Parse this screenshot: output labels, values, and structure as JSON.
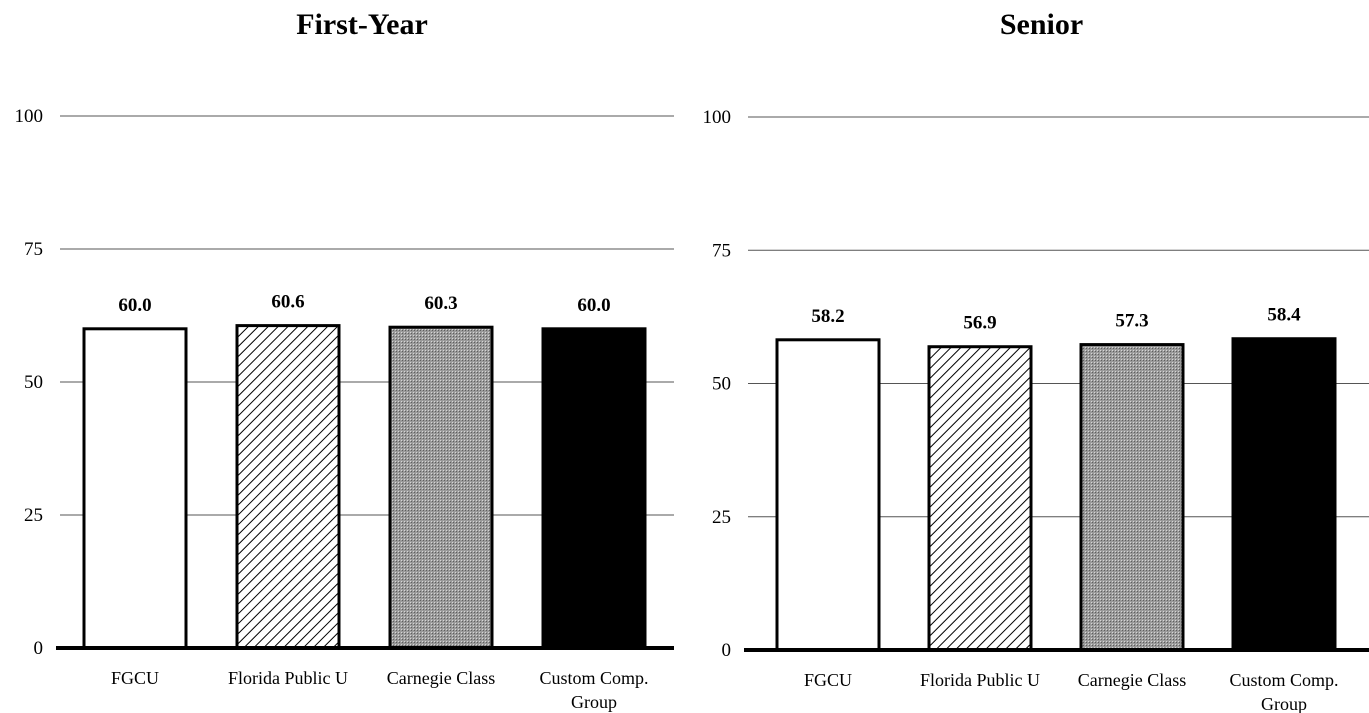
{
  "chart_data": [
    {
      "type": "bar",
      "title": "First-Year",
      "categories": [
        "FGCU",
        "Florida Public U",
        "Carnegie Class",
        "Custom Comp. Group"
      ],
      "values": [
        60.0,
        60.6,
        60.3,
        60.0
      ],
      "value_labels": [
        "60.0",
        "60.6",
        "60.3",
        "60.0"
      ],
      "ylim": [
        0,
        100
      ],
      "yticks": [
        0,
        25,
        50,
        75,
        100
      ],
      "grid": true,
      "xlabel": "",
      "ylabel": ""
    },
    {
      "type": "bar",
      "title": "Senior",
      "categories": [
        "FGCU",
        "Florida Public U",
        "Carnegie Class",
        "Custom Comp. Group"
      ],
      "values": [
        58.2,
        56.9,
        57.3,
        58.4
      ],
      "value_labels": [
        "58.2",
        "56.9",
        "57.3",
        "58.4"
      ],
      "ylim": [
        0,
        100
      ],
      "yticks": [
        0,
        25,
        50,
        75,
        100
      ],
      "grid": true,
      "xlabel": "",
      "ylabel": ""
    }
  ],
  "bar_styles": [
    "white",
    "diagonal-hatch",
    "gray-stipple",
    "black"
  ],
  "colors": {
    "outline": "#000000",
    "stipple": "#9a9a9a",
    "solid": "#000000",
    "grid": "#555555"
  }
}
